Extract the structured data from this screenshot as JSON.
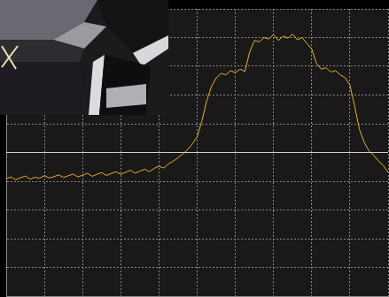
{
  "chart_data": {
    "type": "line",
    "x": [
      0,
      0.125,
      0.25,
      0.375,
      0.5,
      0.625,
      0.75,
      0.875,
      1,
      1.125,
      1.25,
      1.375,
      1.5,
      1.625,
      1.75,
      1.875,
      2,
      2.125,
      2.25,
      2.375,
      2.5,
      2.625,
      2.75,
      2.875,
      3,
      3.125,
      3.25,
      3.375,
      3.5,
      3.625,
      3.75,
      3.875,
      4,
      4.125,
      4.25,
      4.375,
      4.5,
      4.625,
      4.75,
      4.875,
      5,
      5.125,
      5.25,
      5.375,
      5.5,
      5.625,
      5.75,
      5.875,
      6,
      6.125,
      6.25,
      6.375,
      6.5,
      6.625,
      6.75,
      6.875,
      7,
      7.125,
      7.25,
      7.375,
      7.5,
      7.625,
      7.75,
      7.875,
      8,
      8.125,
      8.25,
      8.375,
      8.5,
      8.625,
      8.75,
      8.875,
      9,
      9.125,
      9.25,
      9.375,
      9.5,
      9.625,
      9.75,
      9.875,
      10
    ],
    "values": [
      4.08,
      4.15,
      4.05,
      4.12,
      4.18,
      4.07,
      4.14,
      4.1,
      4.2,
      4.11,
      4.16,
      4.22,
      4.13,
      4.19,
      4.25,
      4.15,
      4.21,
      4.28,
      4.17,
      4.24,
      4.3,
      4.2,
      4.27,
      4.33,
      4.24,
      4.31,
      4.38,
      4.28,
      4.35,
      4.42,
      4.33,
      4.45,
      4.52,
      4.46,
      4.6,
      4.7,
      4.82,
      4.95,
      5.1,
      5.3,
      5.55,
      6.1,
      6.8,
      7.3,
      7.6,
      7.75,
      7.7,
      7.85,
      7.78,
      7.9,
      7.82,
      8.5,
      8.9,
      8.85,
      9.0,
      8.95,
      9.1,
      8.9,
      9.05,
      8.98,
      9.12,
      8.92,
      9.0,
      8.8,
      8.6,
      8.1,
      7.9,
      7.95,
      7.8,
      7.85,
      7.7,
      7.6,
      7.35,
      6.6,
      5.8,
      5.35,
      5.05,
      4.9,
      4.7,
      4.55,
      4.3
    ],
    "color": "#e8b030",
    "xlim": [
      0,
      10
    ],
    "xticks": [
      0,
      1,
      2,
      3,
      4,
      5,
      6,
      7,
      8,
      9,
      10
    ],
    "ylim": [
      0,
      10
    ],
    "yticks": [
      0,
      1,
      2,
      3,
      4,
      5,
      6,
      7,
      8,
      9,
      10
    ],
    "grid": true,
    "tick_labels": false
  }
}
